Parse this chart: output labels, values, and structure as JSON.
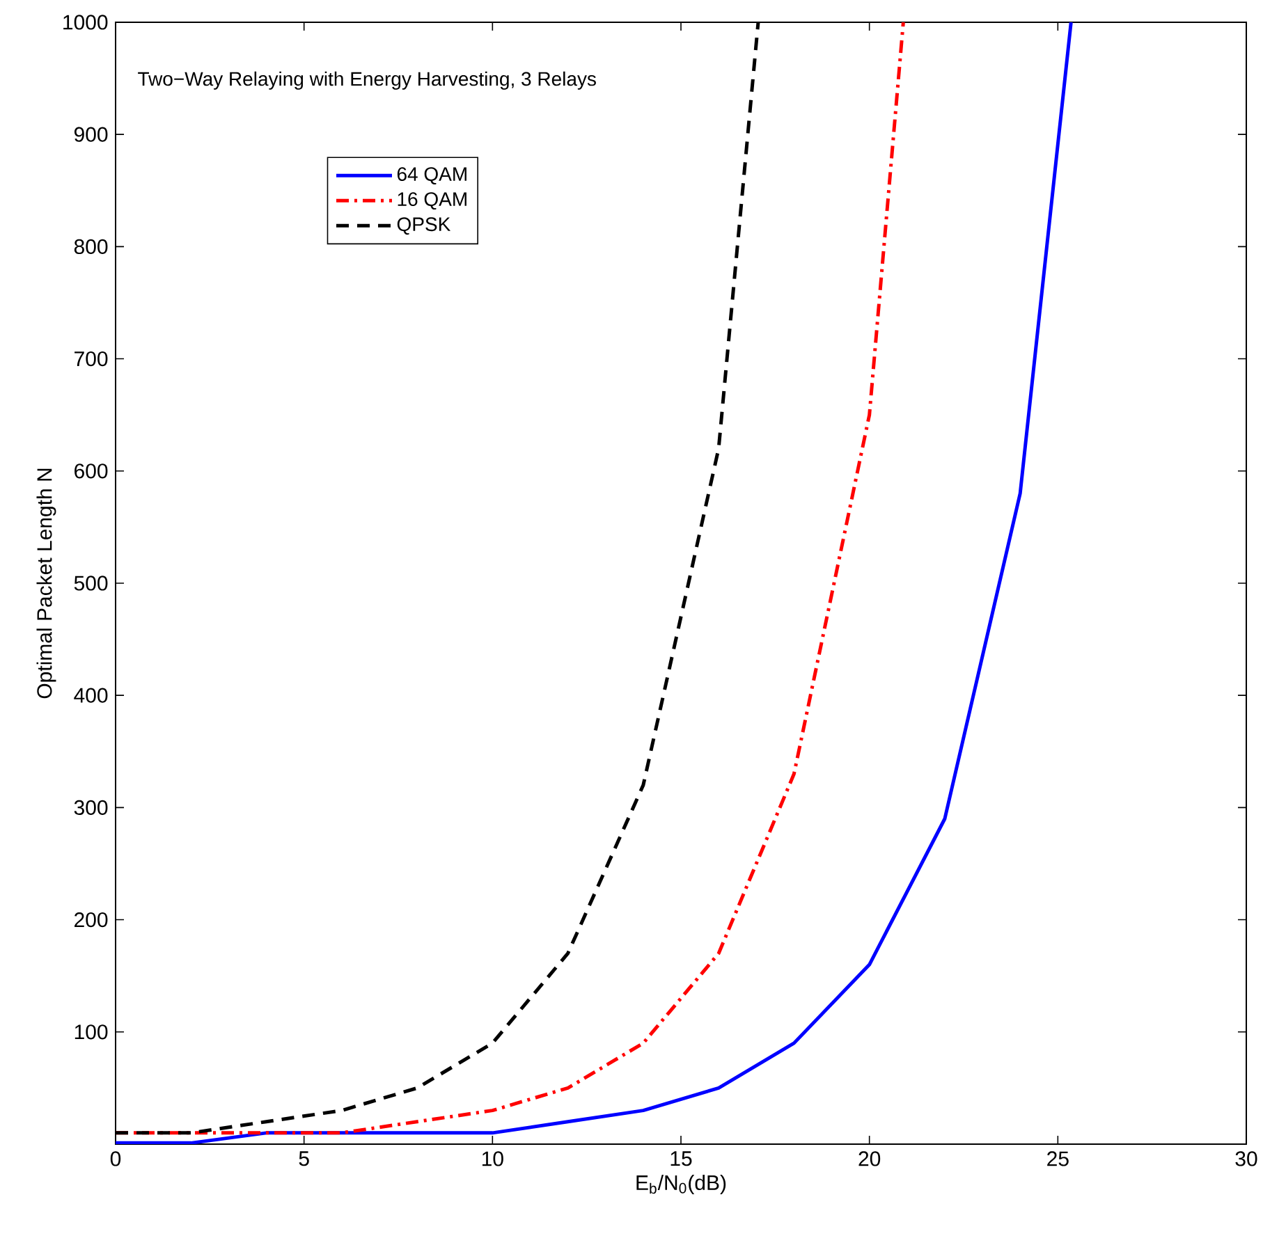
{
  "chart_data": {
    "type": "line",
    "xlabel": "E$_{b}$/N$_{0}$(dB)",
    "ylabel": "Optimal Packet Length N",
    "annotations": [
      "Two−Way Relaying with Energy Harvesting, 3 Relays"
    ],
    "xlim": [
      0,
      30
    ],
    "ylim": [
      0,
      1000
    ],
    "xticks": [
      0,
      5,
      10,
      15,
      20,
      25,
      30
    ],
    "yticks": [
      100,
      200,
      300,
      400,
      500,
      600,
      700,
      800,
      900,
      1000
    ],
    "grid": false,
    "legend": "top left",
    "marker": "none",
    "series": [
      {
        "name": "64 QAM",
        "color": "#0000ff",
        "line_style": "solid",
        "x": [
          0,
          2,
          4,
          6,
          8,
          10,
          12,
          14,
          16,
          18,
          20,
          22,
          24,
          25.35
        ],
        "values": [
          1,
          1,
          10,
          10,
          10,
          10,
          20,
          30,
          50,
          90,
          160,
          290,
          580,
          1000
        ]
      },
      {
        "name": "16 QAM",
        "color": "#ff0000",
        "line_style": "dashdot",
        "x": [
          0,
          2,
          4,
          6,
          8,
          10,
          12,
          14,
          16,
          18,
          20,
          20.9
        ],
        "values": [
          10,
          10,
          10,
          10,
          20,
          30,
          50,
          90,
          170,
          330,
          650,
          1000
        ]
      },
      {
        "name": "QPSK",
        "color": "#000000",
        "line_style": "dashed",
        "x": [
          0,
          2,
          4,
          6,
          8,
          10,
          12,
          14,
          16,
          17.05
        ],
        "values": [
          10,
          10,
          20,
          30,
          50,
          90,
          170,
          320,
          620,
          1000
        ]
      }
    ]
  }
}
